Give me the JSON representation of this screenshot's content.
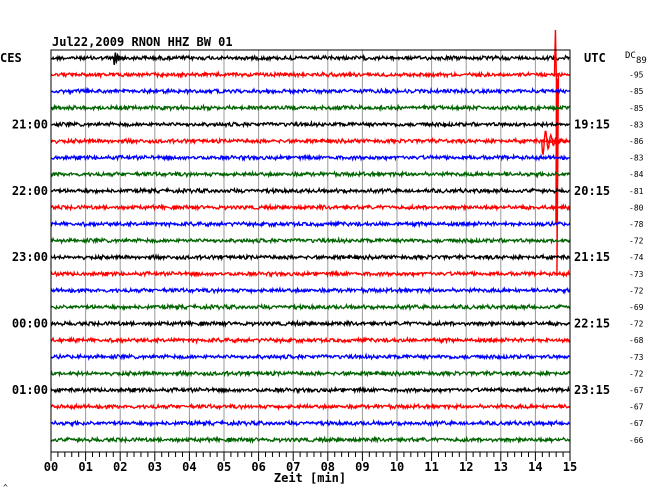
{
  "chart_data": {
    "type": "line",
    "title": "Jul22,2009   RNON HHZ BW 01",
    "left_header": "CES",
    "right_header": "UTC",
    "dc_header": "DC",
    "dc_header_sub": "89",
    "xlabel": "Zeit [min]",
    "xlim": [
      0,
      15
    ],
    "x_tick_labels": [
      "00",
      "01",
      "02",
      "03",
      "04",
      "05",
      "06",
      "07",
      "08",
      "09",
      "10",
      "11",
      "12",
      "13",
      "14",
      "15"
    ],
    "left_time_labels": [
      {
        "row": 4,
        "text": "21:00"
      },
      {
        "row": 8,
        "text": "22:00"
      },
      {
        "row": 12,
        "text": "23:00"
      },
      {
        "row": 16,
        "text": "00:00"
      },
      {
        "row": 20,
        "text": "01:00"
      }
    ],
    "right_time_labels": [
      {
        "row": 4,
        "text": "19:15"
      },
      {
        "row": 8,
        "text": "20:15"
      },
      {
        "row": 12,
        "text": "21:15"
      },
      {
        "row": 16,
        "text": "22:15"
      },
      {
        "row": 20,
        "text": "23:15"
      }
    ],
    "dc_offsets": [
      "-95",
      "-85",
      "-85",
      "-83",
      "-86",
      "-83",
      "-84",
      "-81",
      "-80",
      "-78",
      "-72",
      "-74",
      "-73",
      "-72",
      "-69",
      "-72",
      "-68",
      "-73",
      "-72",
      "-67",
      "-67",
      "-67",
      "-66"
    ],
    "row_count": 24,
    "series_colors": [
      "#000000",
      "#ff0000",
      "#0000ff",
      "#006400"
    ],
    "events": [
      {
        "row": 0,
        "minute": 1.9,
        "amplitude": "small"
      },
      {
        "row": 1,
        "minute": 14.55,
        "amplitude": "very_large"
      },
      {
        "row": 5,
        "minute": 14.5,
        "amplitude": "large"
      }
    ],
    "corner_mark": "^"
  }
}
